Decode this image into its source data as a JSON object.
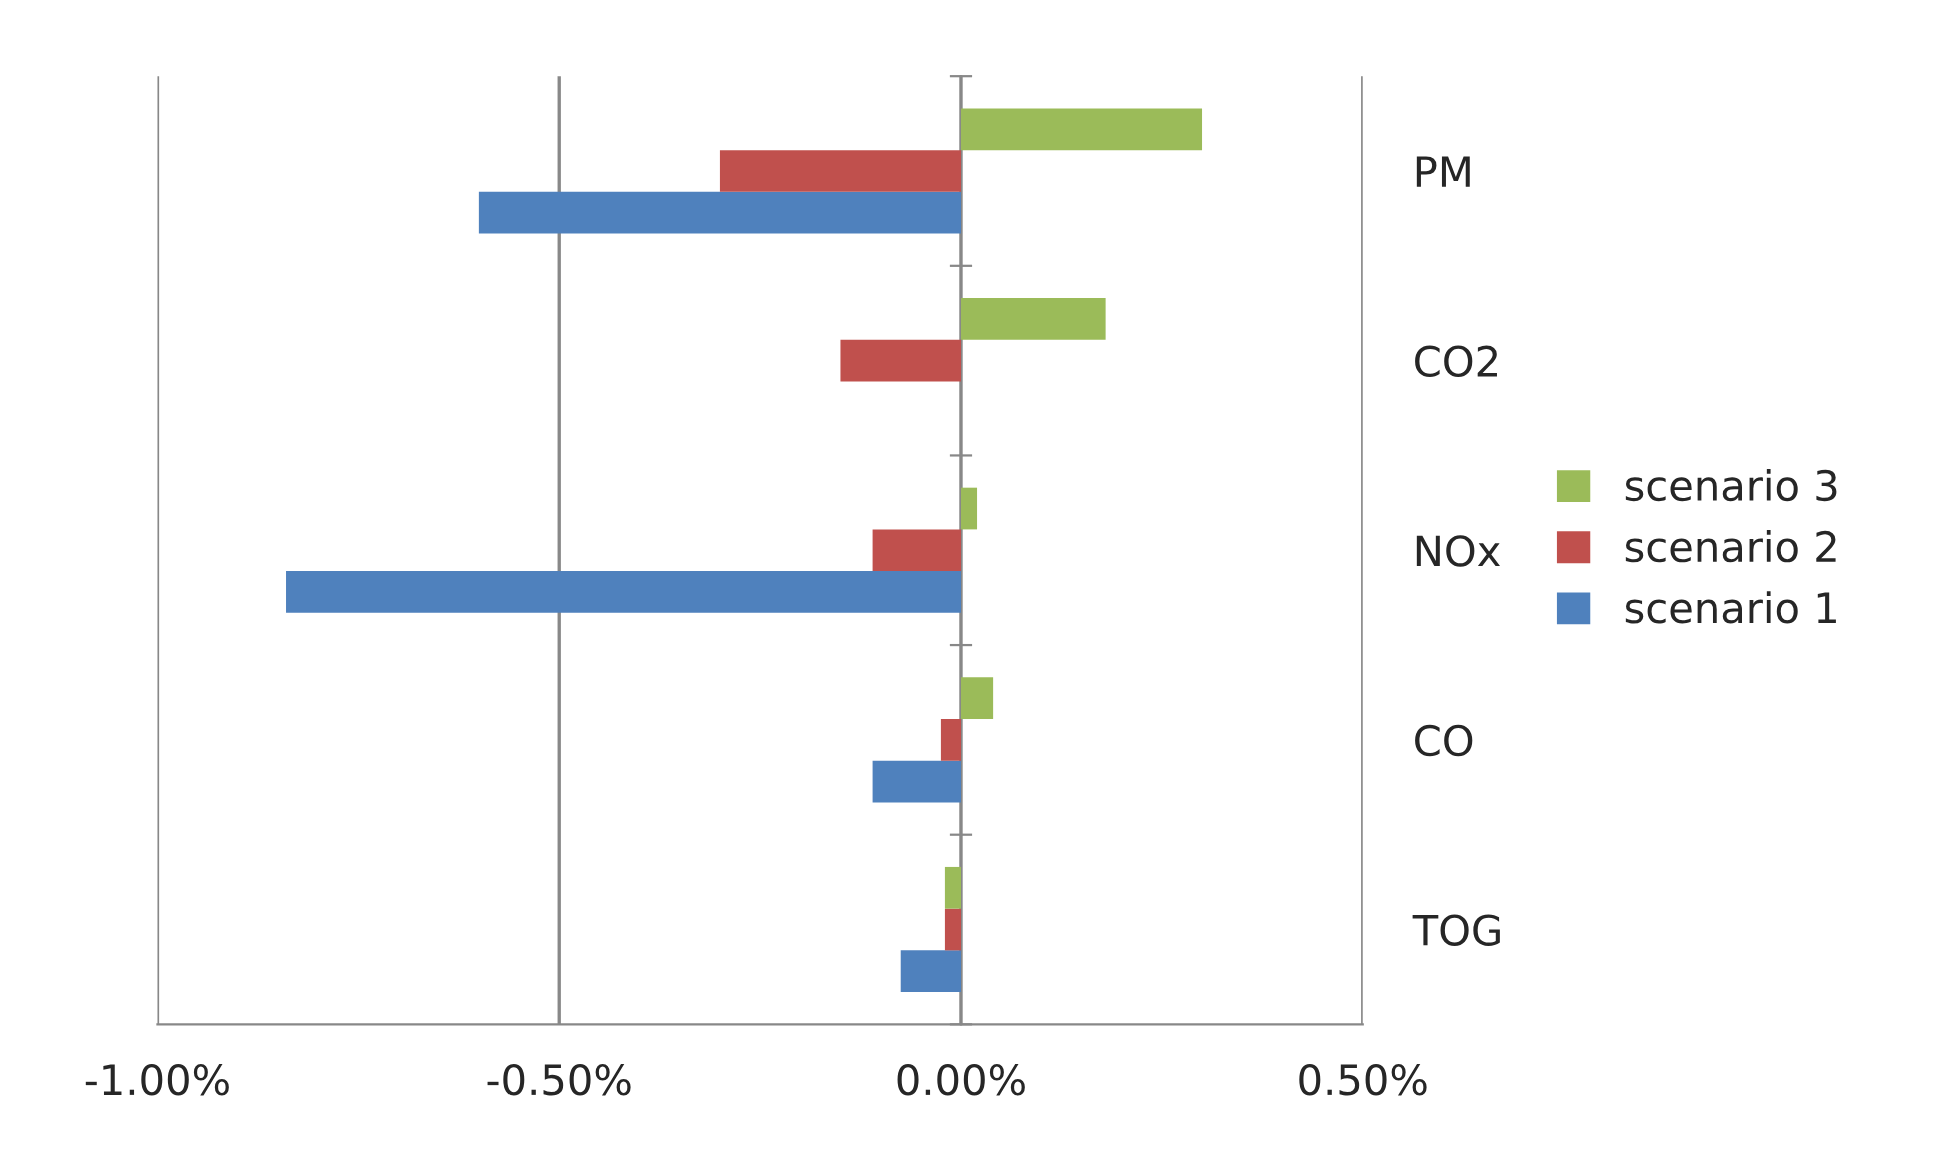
{
  "chart_data": {
    "type": "bar",
    "orientation": "horizontal",
    "categories": [
      "PM",
      "CO2",
      "NOx",
      "CO",
      "TOG"
    ],
    "series": [
      {
        "name": "scenario 1",
        "color": "#4f81bd",
        "values": [
          -0.6,
          null,
          -0.84,
          -0.11,
          -0.075
        ]
      },
      {
        "name": "scenario 2",
        "color": "#c0504d",
        "values": [
          -0.3,
          -0.15,
          -0.11,
          -0.025,
          -0.02
        ]
      },
      {
        "name": "scenario 3",
        "color": "#9bbb59",
        "values": [
          0.3,
          0.18,
          0.02,
          0.04,
          -0.02
        ]
      }
    ],
    "xlim": [
      -1.0,
      0.5
    ],
    "xticks": [
      {
        "value": -1.0,
        "label": "-1.00%"
      },
      {
        "value": -0.5,
        "label": "-0.50%"
      },
      {
        "value": 0,
        "label": "0.00%"
      },
      {
        "value": 0.5,
        "label": "0.50%"
      }
    ],
    "grid": "x",
    "legend": "right"
  }
}
